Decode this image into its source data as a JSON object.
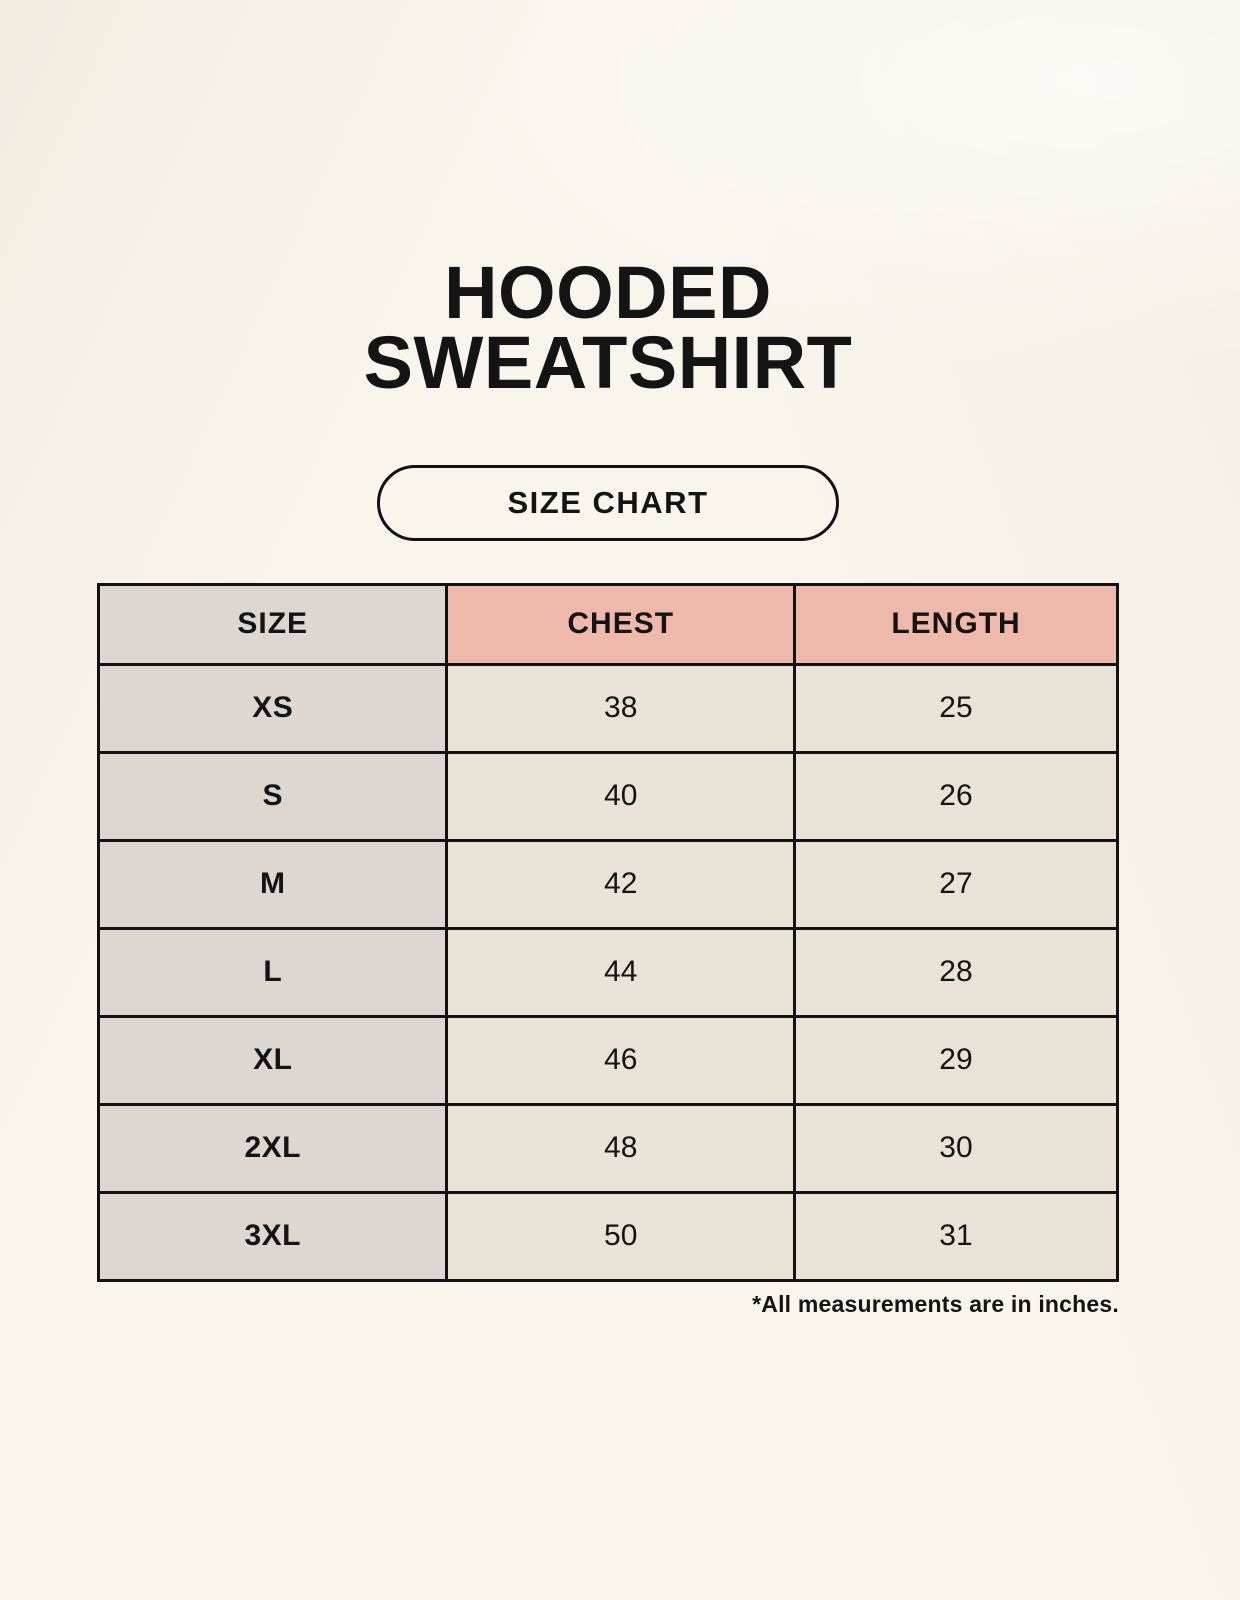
{
  "title": {
    "line1": "HOODED",
    "line2": "SWEATSHIRT"
  },
  "badge": {
    "label": "SIZE CHART"
  },
  "table": {
    "headers": [
      "SIZE",
      "CHEST",
      "LENGTH"
    ],
    "rows": [
      {
        "size": "XS",
        "chest": "38",
        "length": "25"
      },
      {
        "size": "S",
        "chest": "40",
        "length": "26"
      },
      {
        "size": "M",
        "chest": "42",
        "length": "27"
      },
      {
        "size": "L",
        "chest": "44",
        "length": "28"
      },
      {
        "size": "XL",
        "chest": "46",
        "length": "29"
      },
      {
        "size": "2XL",
        "chest": "48",
        "length": "30"
      },
      {
        "size": "3XL",
        "chest": "50",
        "length": "31"
      }
    ]
  },
  "footnote": "*All measurements are in inches.",
  "colors": {
    "background": "#f9f4ec",
    "cell_gray": "#ded6d0",
    "header_pink": "#eeb9ab",
    "cell_cream": "#e9e2d6",
    "border": "#121212",
    "text": "#141414"
  }
}
